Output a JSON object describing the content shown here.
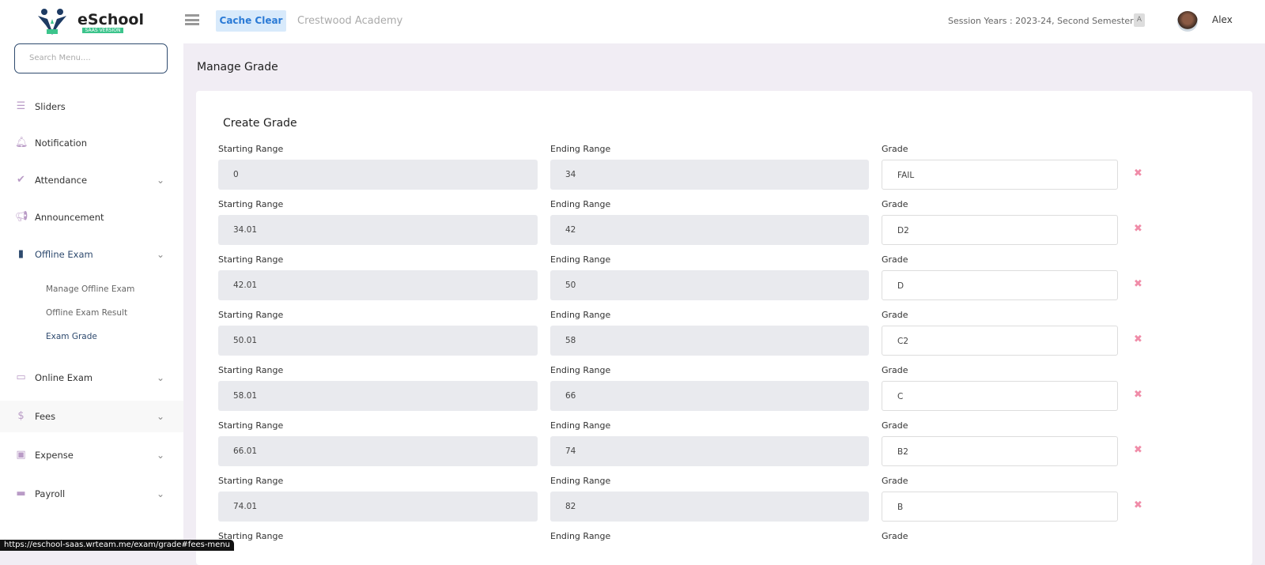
{
  "header": {
    "brand": "eSchool",
    "brand_tag": "SAAS VERSION",
    "cache_clear": "Cache Clear",
    "school": "Crestwood Academy",
    "session": "Session Years : 2023-24, Second Semester",
    "user": "Alex"
  },
  "sidebar": {
    "search_placeholder": "Search Menu....",
    "items": [
      {
        "label": "Sliders",
        "icon": "list-icon",
        "chevron": false
      },
      {
        "label": "Notification",
        "icon": "bell-icon",
        "chevron": false
      },
      {
        "label": "Attendance",
        "icon": "check-icon",
        "chevron": true
      },
      {
        "label": "Announcement",
        "icon": "megaphone-icon",
        "chevron": false
      },
      {
        "label": "Offline Exam",
        "icon": "book-icon",
        "chevron": true,
        "active": true
      },
      {
        "label": "Online Exam",
        "icon": "laptop-icon",
        "chevron": true
      },
      {
        "label": "Fees",
        "icon": "dollar-icon",
        "chevron": true
      },
      {
        "label": "Expense",
        "icon": "money-icon",
        "chevron": true
      },
      {
        "label": "Payroll",
        "icon": "card-icon",
        "chevron": true
      }
    ],
    "subitems": [
      "Manage Offline Exam",
      "Offline Exam Result",
      "Exam Grade"
    ]
  },
  "main": {
    "title": "Manage Grade",
    "card_title": "Create Grade",
    "labels": {
      "start": "Starting Range",
      "end": "Ending Range",
      "grade": "Grade"
    },
    "rows": [
      {
        "start": "0",
        "end": "34",
        "grade": "FAIL"
      },
      {
        "start": "34.01",
        "end": "42",
        "grade": "D2"
      },
      {
        "start": "42.01",
        "end": "50",
        "grade": "D"
      },
      {
        "start": "50.01",
        "end": "58",
        "grade": "C2"
      },
      {
        "start": "58.01",
        "end": "66",
        "grade": "C"
      },
      {
        "start": "66.01",
        "end": "74",
        "grade": "B2"
      },
      {
        "start": "74.01",
        "end": "82",
        "grade": "B"
      }
    ]
  },
  "status_url": "https://eschool-saas.wrteam.me/exam/grade#fees-menu",
  "colors": {
    "accent": "#2e4a6e",
    "delete": "#f08ca8",
    "readonly_bg": "#e9eaee"
  }
}
